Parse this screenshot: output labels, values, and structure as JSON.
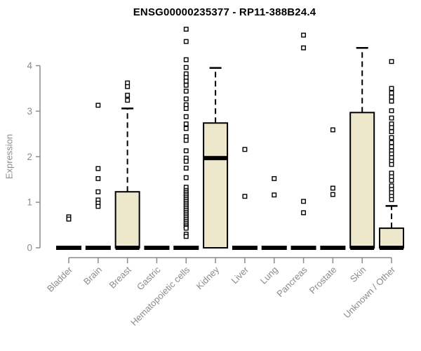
{
  "chart_data": {
    "type": "boxplot",
    "title": "ENSG00000235377 - RP11-388B24.4",
    "xlabel": "",
    "ylabel": "Expression",
    "ylim": [
      0,
      4.9
    ],
    "yticks": [
      0,
      1,
      2,
      3,
      4
    ],
    "grid": false,
    "legend": "none",
    "marker": "open-square",
    "colors": {
      "box_fill": "#EDE7CB",
      "box_stroke": "#000000",
      "median": "#000000",
      "whisker": "#000000",
      "axis": "#8B8B8B",
      "tick_text": "#8B8B8B",
      "title_text": "#000000",
      "outlier_fill": "#FFFFFF"
    },
    "categories": [
      "Bladder",
      "Brain",
      "Breast",
      "Gastric",
      "Hematopoietic cells",
      "Kidney",
      "Liver",
      "Lung",
      "Pancreas",
      "Prostate",
      "Skin",
      "Unknown / Other"
    ],
    "series": [
      {
        "name": "Bladder",
        "q1": 0,
        "median": 0,
        "q3": 0,
        "whisker_low": 0,
        "whisker_high": 0,
        "outliers": [
          0.68,
          0.63
        ]
      },
      {
        "name": "Brain",
        "q1": 0,
        "median": 0,
        "q3": 0,
        "whisker_low": 0,
        "whisker_high": 0,
        "outliers": [
          3.13,
          1.74,
          1.52,
          1.23,
          1.05,
          0.98,
          0.91
        ]
      },
      {
        "name": "Breast",
        "q1": 0,
        "median": 0,
        "q3": 1.23,
        "whisker_low": 0,
        "whisker_high": 3.06,
        "outliers": [
          3.62,
          3.54,
          3.35,
          3.24
        ]
      },
      {
        "name": "Gastric",
        "q1": 0,
        "median": 0,
        "q3": 0,
        "whisker_low": 0,
        "whisker_high": 0,
        "outliers": []
      },
      {
        "name": "Hematopoietic cells",
        "q1": 0,
        "median": 0,
        "q3": 0,
        "whisker_low": 0,
        "whisker_high": 0,
        "outliers": [
          4.8,
          4.53,
          4.13,
          3.96,
          3.82,
          3.74,
          3.66,
          3.57,
          3.44,
          3.27,
          3.14,
          3.06,
          2.88,
          2.72,
          2.62,
          2.44,
          2.36,
          2.13,
          1.97,
          1.9,
          1.75,
          1.54,
          1.33,
          1.26,
          1.22,
          1.18,
          1.14,
          1.1,
          1.06,
          1.02,
          0.98,
          0.94,
          0.9,
          0.86,
          0.82,
          0.78,
          0.74,
          0.7,
          0.66,
          0.62,
          0.58,
          0.54,
          0.5,
          0.46,
          0.43,
          0.3,
          0.25
        ]
      },
      {
        "name": "Kidney",
        "q1": 0,
        "median": 1.97,
        "q3": 2.74,
        "whisker_low": 0,
        "whisker_high": 3.95,
        "outliers": []
      },
      {
        "name": "Liver",
        "q1": 0,
        "median": 0,
        "q3": 0,
        "whisker_low": 0,
        "whisker_high": 0,
        "outliers": [
          2.16,
          1.13
        ]
      },
      {
        "name": "Lung",
        "q1": 0,
        "median": 0,
        "q3": 0,
        "whisker_low": 0,
        "whisker_high": 0,
        "outliers": [
          1.52,
          1.16
        ]
      },
      {
        "name": "Pancreas",
        "q1": 0,
        "median": 0,
        "q3": 0,
        "whisker_low": 0,
        "whisker_high": 0,
        "outliers": [
          4.67,
          4.39,
          1.02,
          0.77
        ]
      },
      {
        "name": "Prostate",
        "q1": 0,
        "median": 0,
        "q3": 0,
        "whisker_low": 0,
        "whisker_high": 0,
        "outliers": [
          2.59,
          1.31,
          1.17
        ]
      },
      {
        "name": "Skin",
        "q1": 0,
        "median": 0,
        "q3": 2.97,
        "whisker_low": 0,
        "whisker_high": 4.39,
        "outliers": []
      },
      {
        "name": "Unknown / Other",
        "q1": 0,
        "median": 0,
        "q3": 0.43,
        "whisker_low": 0,
        "whisker_high": 0.92,
        "outliers": [
          4.09,
          3.5,
          3.4,
          3.31,
          3.22,
          3.01,
          2.85,
          2.72,
          2.64,
          2.55,
          2.42,
          2.31,
          2.22,
          2.13,
          2.06,
          1.98,
          1.9,
          1.83,
          1.64,
          1.56,
          1.48,
          1.36,
          1.28,
          1.21,
          1.13,
          1.06
        ]
      }
    ]
  }
}
